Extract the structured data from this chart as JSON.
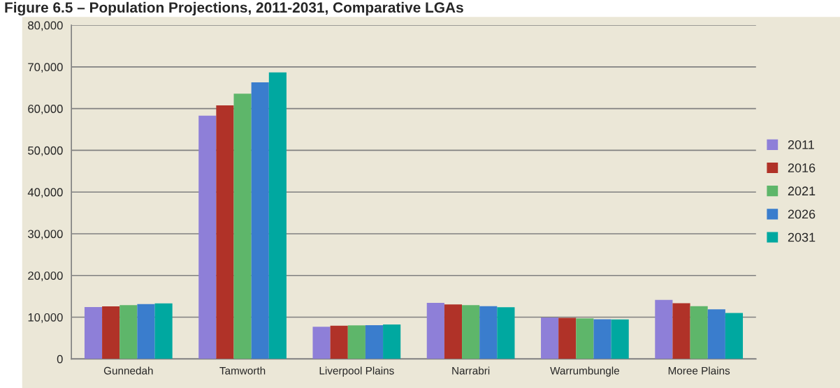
{
  "chart_data": {
    "type": "bar",
    "title": "Figure 6.5 – Population Projections, 2011-2031, Comparative LGAs",
    "categories": [
      "Gunnedah",
      "Tamworth",
      "Liverpool Plains",
      "Narrabri",
      "Warrumbungle",
      "Moree Plains"
    ],
    "series": [
      {
        "name": "2011",
        "color": "#8e7fd8",
        "values": [
          12420,
          58300,
          7710,
          13430,
          9940,
          14160
        ]
      },
      {
        "name": "2016",
        "color": "#b03228",
        "values": [
          12610,
          60800,
          7970,
          13070,
          9820,
          13370
        ]
      },
      {
        "name": "2021",
        "color": "#5eb66a",
        "values": [
          12880,
          63600,
          8040,
          12890,
          9700,
          12650
        ]
      },
      {
        "name": "2026",
        "color": "#3a7dcd",
        "values": [
          13140,
          66300,
          8100,
          12650,
          9520,
          11870
        ]
      },
      {
        "name": "2031",
        "color": "#00a8a0",
        "values": [
          13330,
          68700,
          8240,
          12410,
          9460,
          11020
        ]
      }
    ],
    "ylim": [
      0,
      80000
    ],
    "yticks": [
      {
        "value": 0,
        "label": "0"
      },
      {
        "value": 10000,
        "label": "10,000"
      },
      {
        "value": 20000,
        "label": "20,000"
      },
      {
        "value": 30000,
        "label": "30,000"
      },
      {
        "value": 40000,
        "label": "40,000"
      },
      {
        "value": 50000,
        "label": "50,000"
      },
      {
        "value": 60000,
        "label": "60,000"
      },
      {
        "value": 70000,
        "label": "70,000"
      },
      {
        "value": 80000,
        "label": "80,000"
      }
    ],
    "grid": "y",
    "legend": "right"
  }
}
